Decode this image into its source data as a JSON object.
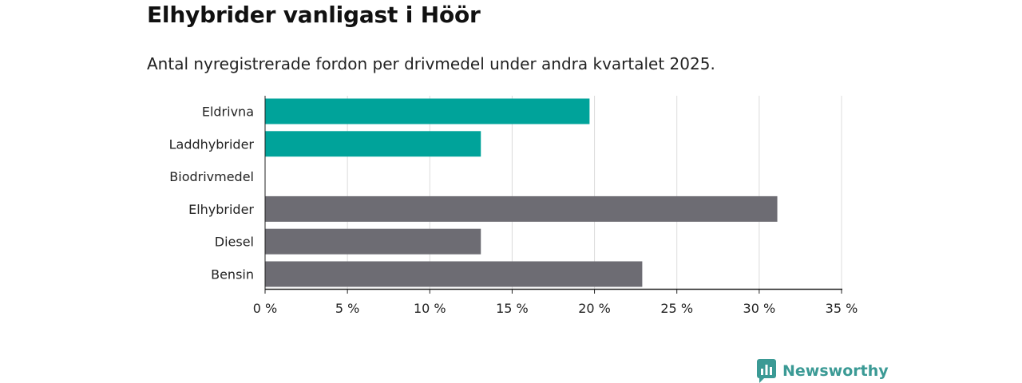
{
  "chart_data": {
    "type": "bar",
    "orientation": "horizontal",
    "title": "Elhybrider vanligast i Höör",
    "subtitle": "Antal nyregistrerade fordon per drivmedel under andra kvartalet 2025.",
    "categories": [
      "Eldrivna",
      "Laddhybrider",
      "Biodrivmedel",
      "Elhybrider",
      "Diesel",
      "Bensin"
    ],
    "values": [
      19.7,
      13.1,
      0,
      31.1,
      13.1,
      22.9
    ],
    "bar_colors": [
      "#00a39a",
      "#00a39a",
      "#00a39a",
      "#6d6c73",
      "#6d6c73",
      "#6d6c73"
    ],
    "xlim": [
      0,
      35
    ],
    "xticks": [
      0,
      5,
      10,
      15,
      20,
      25,
      30,
      35
    ],
    "xtick_labels": [
      "0 %",
      "5 %",
      "10 %",
      "15 %",
      "20 %",
      "25 %",
      "30 %",
      "35 %"
    ],
    "grid": "vertical"
  },
  "brand": {
    "name": "Newsworthy",
    "color": "#3b9a95",
    "icon": "bar-chart-logo-icon"
  }
}
